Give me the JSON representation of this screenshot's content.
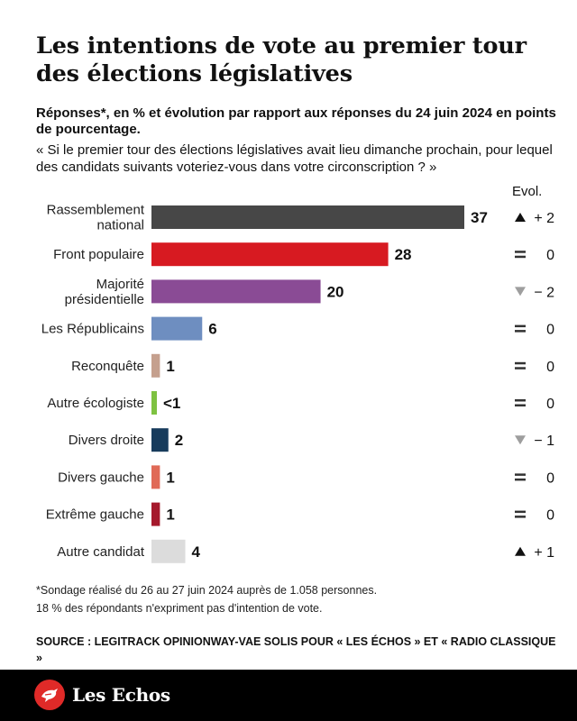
{
  "title": "Les intentions de vote au premier tour des élections législatives",
  "subtitle": "Réponses*, en % et évolution par rapport aux réponses du 24 juin 2024 en points de pourcentage.",
  "question": "« Si le premier tour des élections législatives avait lieu dimanche prochain, pour lequel des candidats suivants voteriez-vous dans votre circonscription ? »",
  "evol_header": "Evol.",
  "chart_data": {
    "type": "bar",
    "orientation": "horizontal",
    "xlim": [
      0,
      37
    ],
    "categories": [
      "Rassemblement national",
      "Front populaire",
      "Majorité présidentielle",
      "Les Républicains",
      "Reconquête",
      "Autre écologiste",
      "Divers droite",
      "Divers gauche",
      "Extrême gauche",
      "Autre candidat"
    ],
    "category_lines": [
      [
        "Rassemblement",
        "national"
      ],
      [
        "Front populaire"
      ],
      [
        "Majorité",
        "présidentielle"
      ],
      [
        "Les Républicains"
      ],
      [
        "Reconquête"
      ],
      [
        "Autre écologiste"
      ],
      [
        "Divers droite"
      ],
      [
        "Divers gauche"
      ],
      [
        "Extrême gauche"
      ],
      [
        "Autre candidat"
      ]
    ],
    "values": [
      37,
      28,
      20,
      6,
      1,
      0.5,
      2,
      1,
      1,
      4
    ],
    "value_labels": [
      "37",
      "28",
      "20",
      "6",
      "1",
      "<1",
      "2",
      "1",
      "1",
      "4"
    ],
    "colors": [
      "#474747",
      "#d71a21",
      "#8a4b95",
      "#6e8ec0",
      "#c5a08e",
      "#7ec241",
      "#173b5c",
      "#e06a57",
      "#a5192c",
      "#dcdcdc"
    ],
    "evolution": [
      {
        "symbol": "up",
        "text": "+ 2",
        "value": 2
      },
      {
        "symbol": "equal",
        "text": "0",
        "value": 0
      },
      {
        "symbol": "down",
        "text": "− 2",
        "value": -2
      },
      {
        "symbol": "equal",
        "text": "0",
        "value": 0
      },
      {
        "symbol": "equal",
        "text": "0",
        "value": 0
      },
      {
        "symbol": "equal",
        "text": "0",
        "value": 0
      },
      {
        "symbol": "down",
        "text": "− 1",
        "value": -1
      },
      {
        "symbol": "equal",
        "text": "0",
        "value": 0
      },
      {
        "symbol": "equal",
        "text": "0",
        "value": 0
      },
      {
        "symbol": "up",
        "text": "+ 1",
        "value": 1
      }
    ]
  },
  "colors": {
    "up_symbol": "#111111",
    "down_symbol": "#9e9e9e",
    "equal_symbol": "#333333",
    "brand_red": "#e02a28",
    "footer_bg": "#000000"
  },
  "footnote": [
    "*Sondage réalisé du 26 au 27 juin 2024 auprès de 1.058 personnes.",
    "18 % des répondants n'expriment pas d'intention de vote."
  ],
  "source": "SOURCE : LEGITRACK OPINIONWAY-VAE SOLIS POUR « LES ÉCHOS » ET « RADIO CLASSIQUE »",
  "brand": {
    "name": "Les Echos",
    "icon": "les-echos-logo-icon"
  }
}
